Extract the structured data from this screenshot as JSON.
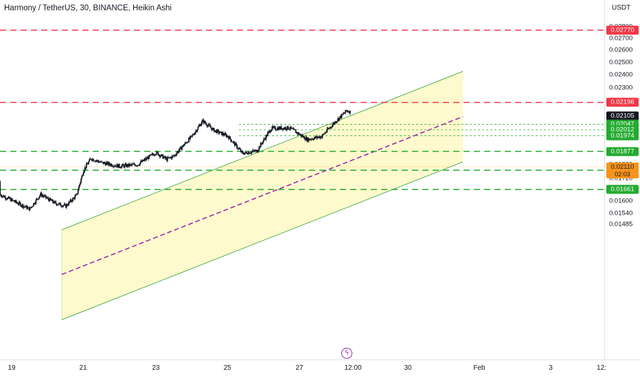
{
  "header": {
    "symbol_title": "Harmony / TetherUS, 30, BINANCE, Heikin Ashi"
  },
  "price_axis": {
    "currency": "USDT",
    "ticks": [
      "0.02800",
      "0.02700",
      "0.02600",
      "0.02500",
      "0.02400",
      "0.02300",
      "0.02200",
      "0.01800",
      "0.01720",
      "0.01600",
      "0.01540",
      "0.01485"
    ],
    "tick_values": [
      0.028,
      0.027,
      0.026,
      0.025,
      0.024,
      0.023,
      0.022,
      0.018,
      0.0172,
      0.016,
      0.0154,
      0.01485
    ],
    "current_price": {
      "value": "0.02110",
      "countdown": "02:03",
      "color": "#f7931a"
    },
    "badges": [
      {
        "label": "0.02770",
        "value": 0.0277,
        "color": "#f23645"
      },
      {
        "label": "0.02196",
        "value": 0.02196,
        "color": "#f23645"
      },
      {
        "label": "0.02105",
        "value": 0.02105,
        "color": "#131722"
      },
      {
        "label": "0.02047",
        "value": 0.02047,
        "color": "#22ab2e"
      },
      {
        "label": "0.02012",
        "value": 0.02012,
        "color": "#22ab2e"
      },
      {
        "label": "0.01974",
        "value": 0.01974,
        "color": "#22ab2e"
      },
      {
        "label": "0.01877",
        "value": 0.01877,
        "color": "#22ab2e"
      },
      {
        "label": "0.01767",
        "value": 0.01767,
        "color": "#22ab2e"
      },
      {
        "label": "0.01661",
        "value": 0.01661,
        "color": "#22ab2e"
      }
    ]
  },
  "time_axis": {
    "labels": [
      "19",
      "21",
      "23",
      "25",
      "27",
      "12:00",
      "30",
      "Feb",
      "3",
      "12:"
    ]
  },
  "drawings": {
    "resistance_levels": [
      0.0277,
      0.02196
    ],
    "support_levels": [
      0.01877,
      0.01767,
      0.01661
    ],
    "target_levels": [
      0.02047,
      0.02012,
      0.01974
    ],
    "channel_color": "#4caf50",
    "channel_fill": "#fff9c4",
    "midline_color": "#9c27b0",
    "resistance_color": "#f23645",
    "support_color": "#22ab2e"
  },
  "chart_data": {
    "type": "candlestick",
    "symbol": "Harmony / TetherUS",
    "interval": "30",
    "exchange": "BINANCE",
    "candle_style": "Heikin Ashi",
    "ylim": [
      0.0145,
      0.0283
    ],
    "y_scale": "log",
    "price_path": [
      [
        "18",
        0.01705
      ],
      [
        "18.5",
        0.0165
      ],
      [
        "19",
        0.01605
      ],
      [
        "19.5",
        0.0156
      ],
      [
        "19.8",
        0.01635
      ],
      [
        "20.2",
        0.0159
      ],
      [
        "20.5",
        0.01575
      ],
      [
        "20.8",
        0.0163
      ],
      [
        "21",
        0.0177
      ],
      [
        "21.2",
        0.01835
      ],
      [
        "21.5",
        0.0181
      ],
      [
        "22",
        0.0179
      ],
      [
        "22.5",
        0.018
      ],
      [
        "23",
        0.0187
      ],
      [
        "23.3",
        0.0183
      ],
      [
        "23.5",
        0.0185
      ],
      [
        "24",
        0.0197
      ],
      [
        "24.3",
        0.0207
      ],
      [
        "24.6",
        0.0201
      ],
      [
        "25",
        0.0197
      ],
      [
        "25.4",
        0.01865
      ],
      [
        "25.8",
        0.0188
      ],
      [
        "26.2",
        0.0202
      ],
      [
        "26.7",
        0.02025
      ],
      [
        "27.2",
        0.0195
      ],
      [
        "27.6",
        0.0197
      ],
      [
        "28",
        0.0207
      ],
      [
        "28.3",
        0.0214
      ],
      [
        "28.6",
        0.0211
      ]
    ]
  }
}
